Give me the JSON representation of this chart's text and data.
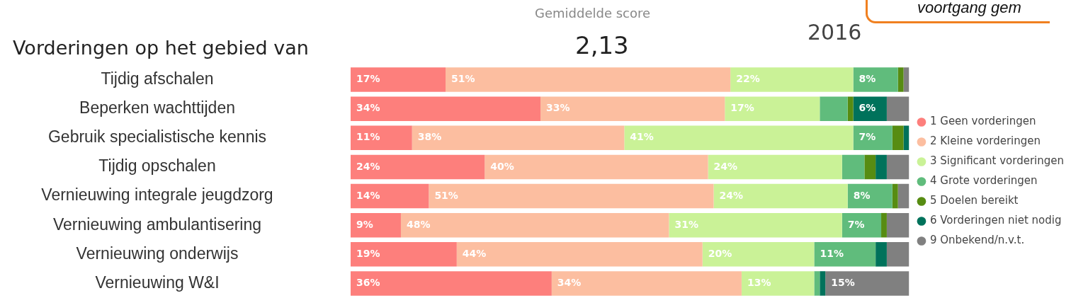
{
  "chart_data": {
    "type": "bar",
    "orientation": "horizontal",
    "stacked": true,
    "legend": "right",
    "xlim": [
      0,
      100
    ],
    "ylabel": "Vorderingen op het gebied van",
    "annotations": [
      "Gemiddelde score",
      "2,13",
      "2016",
      "voortgang gem"
    ],
    "categories": [
      "Tijdig afschalen",
      "Beperken wachttijden",
      "Gebruik specialistische kennis",
      "Tijdig opschalen",
      "Vernieuwing integrale jeugdzorg",
      "Vernieuwing ambulantisering",
      "Vernieuwing onderwijs",
      "Vernieuwing W&I"
    ],
    "series": [
      {
        "name": "1 Geen vorderingen",
        "color": "#fd7f7c",
        "values": [
          17,
          34,
          11,
          24,
          14,
          9,
          19,
          36
        ],
        "value_labels": [
          "17%",
          "34%",
          "11%",
          "24%",
          "14%",
          "9%",
          "19%",
          "36%"
        ]
      },
      {
        "name": "2 Kleine vorderingen",
        "color": "#fcbea0",
        "values": [
          51,
          33,
          38,
          40,
          51,
          48,
          44,
          34
        ],
        "value_labels": [
          "51%",
          "33%",
          "38%",
          "40%",
          "51%",
          "48%",
          "44%",
          "34%"
        ]
      },
      {
        "name": "3 Significant vorderingen",
        "color": "#caf297",
        "values": [
          22,
          17,
          41,
          24,
          24,
          31,
          20,
          13
        ],
        "value_labels": [
          "22%",
          "17%",
          "41%",
          "24%",
          "24%",
          "31%",
          "20%",
          "13%"
        ]
      },
      {
        "name": "4 Grote vorderingen",
        "color": "#60bc7c",
        "values": [
          8,
          5,
          7,
          4,
          8,
          7,
          11,
          1
        ],
        "value_labels": [
          "8%",
          null,
          "7%",
          null,
          "8%",
          "7%",
          "11%",
          null
        ]
      },
      {
        "name": "5 Doelen bereikt",
        "color": "#578c12",
        "values": [
          1,
          1,
          2,
          2,
          1,
          1,
          0,
          0
        ],
        "value_labels": [
          null,
          null,
          null,
          null,
          null,
          null,
          null,
          null
        ]
      },
      {
        "name": "6 Vorderingen niet nodig",
        "color": "#00725b",
        "values": [
          0,
          6,
          1,
          2,
          0,
          0,
          2,
          1
        ],
        "value_labels": [
          null,
          "6%",
          null,
          null,
          null,
          null,
          null,
          null
        ]
      },
      {
        "name": "9 Onbekend/n.v.t.",
        "color": "#808080",
        "values": [
          1,
          4,
          0,
          4,
          2,
          4,
          4,
          15
        ],
        "value_labels": [
          null,
          null,
          null,
          null,
          null,
          null,
          null,
          "15%"
        ]
      }
    ]
  }
}
